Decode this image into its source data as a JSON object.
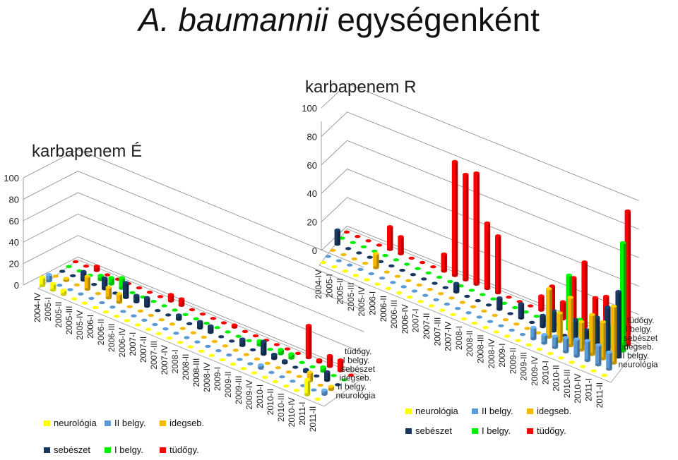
{
  "title": {
    "species": "A. baumannii",
    "rest": " egységenként"
  },
  "chart_data": [
    {
      "type": "bar3d",
      "title": "karbapenem É",
      "yticks": [
        0,
        20,
        40,
        60,
        80,
        100
      ],
      "ylim": [
        0,
        100
      ],
      "categories": [
        "2004-IV",
        "2005-I",
        "2005-II",
        "2005-III",
        "2005-IV",
        "2006-I",
        "2006-II",
        "2006-III",
        "2006-IV",
        "2007-I",
        "2007-II",
        "2007-III",
        "2007-IV",
        "2008-I",
        "2008-II",
        "2008-III",
        "2008-IV",
        "2009-I",
        "2009-II",
        "2009-III",
        "2009-IV",
        "2010-I",
        "2010-II",
        "2010-III",
        "2010-IV",
        "2011-I",
        "2011-II"
      ],
      "series": [
        {
          "name": "neurológia",
          "color": "#FFFF00",
          "values": [
            8,
            6,
            4,
            0,
            0,
            0,
            0,
            0,
            0,
            0,
            0,
            0,
            0,
            0,
            0,
            0,
            0,
            0,
            0,
            0,
            0,
            0,
            0,
            0,
            0,
            14,
            0
          ]
        },
        {
          "name": "II belgy.",
          "color": "#5B9BD5",
          "values": [
            6,
            0,
            0,
            0,
            0,
            0,
            0,
            0,
            0,
            0,
            0,
            0,
            0,
            0,
            0,
            0,
            0,
            0,
            0,
            0,
            3,
            0,
            0,
            0,
            0,
            0,
            4
          ]
        },
        {
          "name": "idegseb.",
          "color": "#F5B800",
          "values": [
            0,
            2,
            0,
            12,
            0,
            10,
            8,
            0,
            0,
            0,
            0,
            0,
            0,
            0,
            0,
            0,
            0,
            0,
            0,
            0,
            0,
            0,
            0,
            0,
            8,
            0,
            3
          ]
        },
        {
          "name": "sebészet",
          "color": "#17375E",
          "values": [
            0,
            0,
            8,
            0,
            10,
            0,
            14,
            6,
            8,
            0,
            0,
            4,
            0,
            6,
            6,
            0,
            0,
            6,
            0,
            12,
            4,
            2,
            0,
            2,
            0,
            8,
            0
          ]
        },
        {
          "name": "I belgy.",
          "color": "#00EE00",
          "values": [
            0,
            0,
            0,
            4,
            6,
            10,
            0,
            0,
            0,
            0,
            0,
            0,
            0,
            0,
            0,
            0,
            0,
            0,
            4,
            0,
            4,
            4,
            0,
            0,
            4,
            0,
            0
          ]
        },
        {
          "name": "tüdőgy.",
          "color": "#FF0000",
          "values": [
            0,
            0,
            4,
            0,
            0,
            0,
            0,
            0,
            0,
            6,
            6,
            0,
            0,
            0,
            0,
            2,
            0,
            0,
            0,
            0,
            0,
            0,
            30,
            2,
            10,
            10,
            0
          ]
        }
      ],
      "legend": "bottom"
    },
    {
      "type": "bar3d",
      "title": "karbapenem R",
      "yticks": [
        0,
        20,
        40,
        60,
        80,
        100
      ],
      "ylim": [
        0,
        100
      ],
      "categories": [
        "2004-IV",
        "2005-I",
        "2005-II",
        "2005-III",
        "2005-IV",
        "2006-I",
        "2006-II",
        "2006-III",
        "2006-IV",
        "2007-I",
        "2007-II",
        "2007-III",
        "2007-IV",
        "2008-I",
        "2008-II",
        "2008-III",
        "2008-IV",
        "2009-I",
        "2009-II",
        "2009-III",
        "2009-IV",
        "2010-I",
        "2010-II",
        "2010-III",
        "2010-IV",
        "2011-I",
        "2011-II"
      ],
      "series": [
        {
          "name": "neurológia",
          "color": "#FFFF00",
          "values": [
            0,
            0,
            0,
            0,
            0,
            0,
            0,
            0,
            0,
            0,
            0,
            0,
            0,
            0,
            0,
            0,
            0,
            0,
            0,
            0,
            0,
            0,
            0,
            0,
            0,
            0,
            0
          ]
        },
        {
          "name": "II belgy.",
          "color": "#5B9BD5",
          "values": [
            0,
            0,
            0,
            0,
            0,
            0,
            0,
            0,
            0,
            0,
            0,
            0,
            0,
            0,
            0,
            0,
            0,
            0,
            0,
            8,
            6,
            8,
            10,
            12,
            14,
            14,
            12
          ]
        },
        {
          "name": "idegseb.",
          "color": "#F5B800",
          "values": [
            0,
            0,
            0,
            0,
            10,
            0,
            0,
            0,
            0,
            0,
            0,
            0,
            0,
            0,
            0,
            0,
            0,
            0,
            0,
            0,
            34,
            20,
            34,
            20,
            28,
            26,
            40
          ]
        },
        {
          "name": "sebészet",
          "color": "#17375E",
          "values": [
            10,
            0,
            0,
            0,
            0,
            0,
            0,
            0,
            0,
            0,
            0,
            6,
            0,
            0,
            0,
            8,
            0,
            10,
            0,
            8,
            14,
            0,
            14,
            10,
            22,
            32,
            46
          ]
        },
        {
          "name": "I belgy.",
          "color": "#00EE00",
          "values": [
            0,
            0,
            0,
            0,
            0,
            0,
            0,
            0,
            0,
            0,
            0,
            0,
            0,
            0,
            0,
            0,
            0,
            0,
            0,
            0,
            0,
            38,
            10,
            6,
            10,
            14,
            76
          ]
        },
        {
          "name": "tüdőgy.",
          "color": "#FF0000",
          "values": [
            0,
            0,
            0,
            0,
            16,
            12,
            0,
            0,
            0,
            12,
            80,
            74,
            78,
            46,
            40,
            0,
            0,
            0,
            10,
            20,
            12,
            32,
            46,
            24,
            28,
            18,
            94
          ]
        }
      ],
      "legend": "bottom"
    }
  ]
}
